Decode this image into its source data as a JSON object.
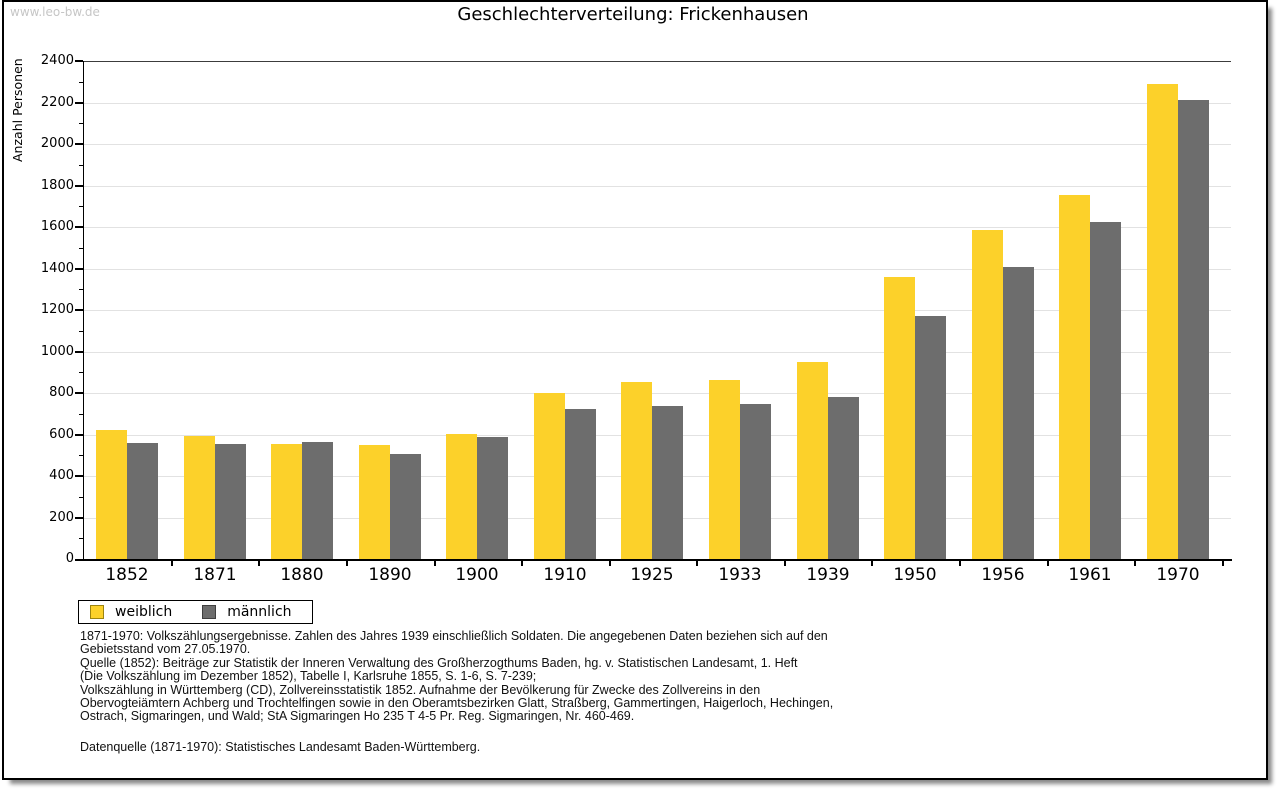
{
  "page": {
    "watermark": "www.leo-bw.de"
  },
  "chart_data": {
    "type": "bar",
    "title": "Geschlechterverteilung: Frickenhausen",
    "xlabel": "",
    "ylabel": "Anzahl Personen",
    "categories": [
      "1852",
      "1871",
      "1880",
      "1890",
      "1900",
      "1910",
      "1925",
      "1933",
      "1939",
      "1950",
      "1956",
      "1961",
      "1970"
    ],
    "series": [
      {
        "name": "weiblich",
        "color": "#FCD12A",
        "swatch_border": "#9c8410",
        "values": [
          620,
          595,
          555,
          550,
          600,
          800,
          855,
          865,
          950,
          1360,
          1585,
          1755,
          2290
        ]
      },
      {
        "name": "männlich",
        "color": "#6D6D6D",
        "swatch_border": "#3f3f3f",
        "values": [
          560,
          555,
          565,
          505,
          590,
          725,
          735,
          745,
          780,
          1170,
          1405,
          1625,
          2210
        ]
      }
    ],
    "ylim": [
      0,
      2400
    ],
    "ytick_step": 200,
    "yminor_step": 100,
    "grid": "horizontal",
    "legend_position": "bottom-left"
  },
  "footnotes": {
    "lines": [
      "1871-1970: Volkszählungsergebnisse. Zahlen des Jahres 1939 einschließlich Soldaten. Die angegebenen Daten beziehen sich auf den",
      "Gebietsstand vom 27.05.1970.",
      "Quelle (1852): Beiträge zur Statistik der Inneren Verwaltung des Großherzogthums Baden, hg. v. Statistischen Landesamt, 1. Heft",
      "(Die Volkszählung im Dezember 1852), Tabelle I, Karlsruhe 1855, S. 1-6, S. 7-239;",
      "Volkszählung in Württemberg (CD), Zollvereinsstatistik 1852. Aufnahme der Bevölkerung für Zwecke des Zollvereins in den",
      "Obervogteiämtern Achberg und Trochtelfingen sowie in den Oberamtsbezirken Glatt, Straßberg, Gammertingen, Haigerloch, Hechingen,",
      "Ostrach, Sigmaringen, und Wald; StA Sigmaringen Ho 235 T 4-5 Pr. Reg. Sigmaringen, Nr. 460-469."
    ],
    "datasource": "Datenquelle (1871-1970): Statistisches Landesamt Baden-Württemberg."
  },
  "colors": {
    "weiblich": "#FCD12A",
    "maennlich": "#6D6D6D",
    "gridline": "#e2e2e2",
    "watermark": "#c6c6c6",
    "frame_border": "#000000"
  }
}
